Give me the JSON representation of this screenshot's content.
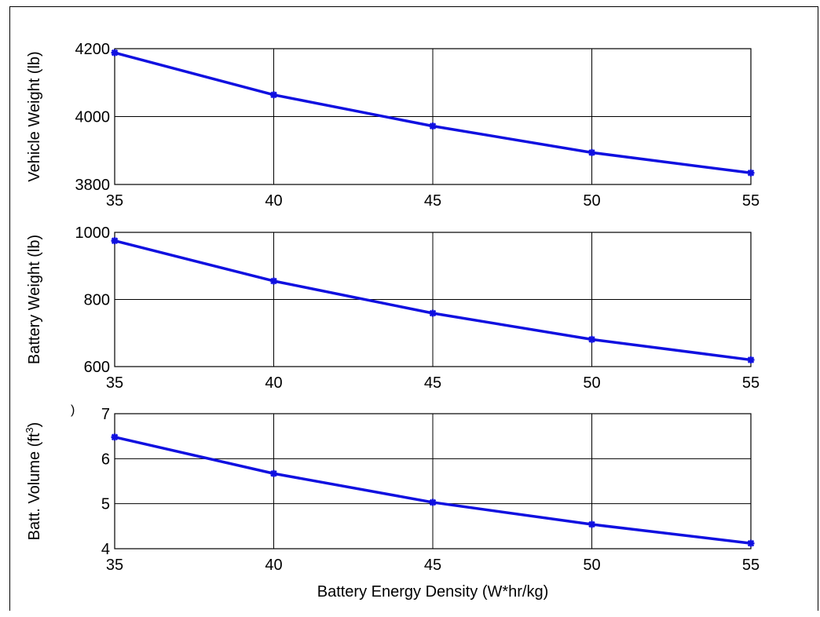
{
  "colors": {
    "line": "#1010e0",
    "grid": "#000000",
    "axes": "#000000"
  },
  "stray_mark": ")",
  "chart_data": [
    {
      "type": "line",
      "x": [
        35,
        40,
        45,
        50,
        55
      ],
      "y": [
        4188,
        4064,
        3972,
        3894,
        3834
      ],
      "xticks": [
        "35",
        "40",
        "45",
        "50",
        "55"
      ],
      "yticks": [
        "3800",
        "4000",
        "4200"
      ],
      "xlim": [
        35,
        55
      ],
      "ylim": [
        3800,
        4200
      ],
      "xlabel": "",
      "ylabel": "Vehicle Weight (lb)",
      "grid": true,
      "marker": "asterisk"
    },
    {
      "type": "line",
      "x": [
        35,
        40,
        45,
        50,
        55
      ],
      "y": [
        975,
        855,
        759,
        681,
        620
      ],
      "xticks": [
        "35",
        "40",
        "45",
        "50",
        "55"
      ],
      "yticks": [
        "600",
        "800",
        "1000"
      ],
      "xlim": [
        35,
        55
      ],
      "ylim": [
        600,
        1000
      ],
      "xlabel": "",
      "ylabel": "Battery Weight (lb)",
      "grid": true,
      "marker": "asterisk"
    },
    {
      "type": "line",
      "x": [
        35,
        40,
        45,
        50,
        55
      ],
      "y": [
        6.48,
        5.67,
        5.03,
        4.54,
        4.12
      ],
      "xticks": [
        "35",
        "40",
        "45",
        "50",
        "55"
      ],
      "yticks": [
        "4",
        "5",
        "6",
        "7"
      ],
      "xlim": [
        35,
        55
      ],
      "ylim": [
        4,
        7
      ],
      "xlabel": "Battery Energy Density (W*hr/kg)",
      "ylabel": "Batt. Volume (ft",
      "ylabel_sup": "3",
      "ylabel_end": ")",
      "grid": true,
      "marker": "asterisk"
    }
  ]
}
